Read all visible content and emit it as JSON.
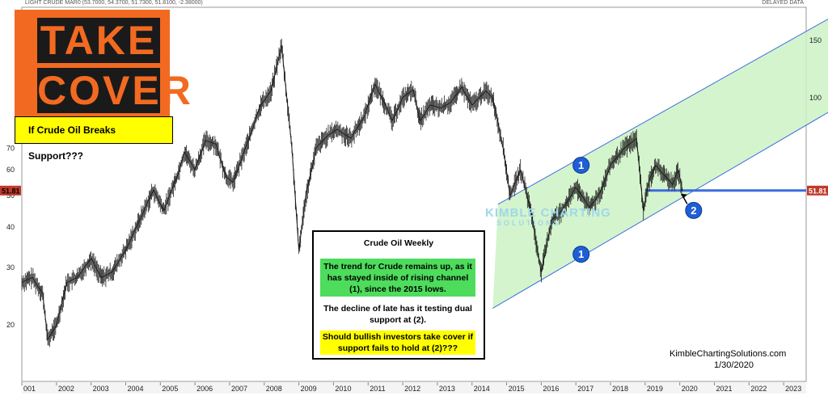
{
  "header": {
    "symbol_info": "LIGHT CRUDE MAR0 (53.7000, 54.3700, 51.7300, 51.8100, -2.38000)",
    "feed_note": "DELAYED DATA"
  },
  "banner": {
    "line1": "TAKE",
    "line2": "COVER"
  },
  "note": "If Crude Oil Breaks Support???",
  "textbox": {
    "title": "Crude Oil Weekly",
    "green_text": "The trend for Crude remains up, as it has stayed inside of rising channel (1), since the 2015 lows.",
    "plain_text": "The decline of late has it testing dual support at (2).",
    "yellow_text": "Should bullish investors take cover if support fails to hold at (2)???"
  },
  "price_tag": "51.81",
  "credit": {
    "site": "KimbleChartingSolutions.com",
    "date": "1/30/2020"
  },
  "watermark": {
    "line1": "KIMBLE CHARTING",
    "line2": "SOLUTIONS"
  },
  "markers": [
    "1",
    "1",
    "2"
  ],
  "colors": {
    "channel_fill": "#ccf2c4",
    "channel_line": "#3b6fe0",
    "support_line": "#3c6ce0",
    "marker": "#1f5fd6",
    "price_tag": "#c0392b"
  },
  "chart_data": {
    "type": "line",
    "title": "Crude Oil Weekly",
    "x_ticks": [
      "001",
      "2002",
      "2003",
      "2004",
      "2005",
      "2006",
      "2007",
      "2008",
      "2009",
      "2010",
      "2011",
      "2012",
      "2013",
      "2014",
      "2015",
      "2016",
      "2017",
      "2018",
      "2019",
      "2020",
      "2021",
      "2022",
      "2023"
    ],
    "y_ticks_left": [
      20,
      30,
      40,
      50,
      60,
      70
    ],
    "y_ticks_right": [
      100,
      150
    ],
    "y_scale": "log",
    "ylim": [
      15,
      180
    ],
    "support_level": 51.81,
    "series": [
      {
        "name": "",
        "x": [
          2001.0,
          2001.3,
          2001.6,
          2001.75,
          2002.0,
          2002.3,
          2002.6,
          2003.0,
          2003.3,
          2003.6,
          2004.0,
          2004.4,
          2004.8,
          2005.1,
          2005.5,
          2005.7,
          2006.0,
          2006.3,
          2006.6,
          2006.9,
          2007.1,
          2007.5,
          2007.9,
          2008.2,
          2008.5,
          2008.8,
          2009.0,
          2009.2,
          2009.5,
          2009.8,
          2010.1,
          2010.5,
          2010.9,
          2011.2,
          2011.4,
          2011.7,
          2012.0,
          2012.3,
          2012.5,
          2012.8,
          2013.1,
          2013.4,
          2013.7,
          2014.0,
          2014.4,
          2014.6,
          2014.9,
          2015.1,
          2015.4,
          2015.7,
          2016.0,
          2016.3,
          2016.6,
          2017.0,
          2017.4,
          2017.7,
          2018.0,
          2018.4,
          2018.75,
          2018.95,
          2019.1,
          2019.3,
          2019.6,
          2019.8,
          2019.95,
          2020.08
        ],
        "y": [
          27,
          28,
          25,
          18,
          20,
          27,
          28,
          32,
          28,
          29,
          34,
          42,
          52,
          45,
          58,
          68,
          60,
          74,
          72,
          57,
          55,
          72,
          95,
          105,
          145,
          70,
          34,
          50,
          70,
          76,
          80,
          75,
          88,
          110,
          100,
          85,
          100,
          106,
          85,
          95,
          93,
          97,
          108,
          95,
          105,
          100,
          70,
          50,
          60,
          45,
          29,
          42,
          45,
          53,
          46,
          51,
          62,
          70,
          75,
          45,
          55,
          62,
          57,
          54,
          60,
          51.81
        ]
      }
    ]
  }
}
